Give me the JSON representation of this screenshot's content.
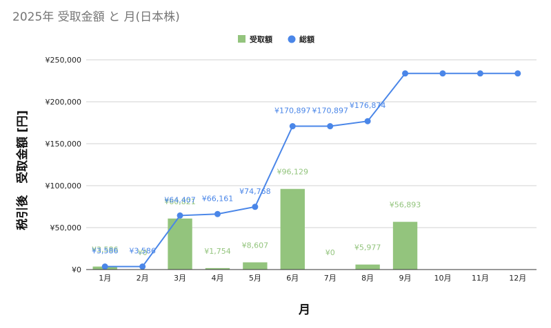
{
  "title": "2025年 受取金額 と 月(日本株)",
  "colors": {
    "bar": "#93c47d",
    "line": "#4a86e8",
    "grid": "#d0d0d0",
    "text": "#222222"
  },
  "chart_data": {
    "type": "bar",
    "title": "2025年 受取金額 と 月(日本株)",
    "xlabel": "月",
    "ylabel": "税引後　受取金額 [円]",
    "categories": [
      "1月",
      "2月",
      "3月",
      "4月",
      "5月",
      "6月",
      "7月",
      "8月",
      "9月",
      "10月",
      "11月",
      "12月"
    ],
    "ylim": [
      0,
      250000
    ],
    "y_ticks": [
      0,
      50000,
      100000,
      150000,
      200000,
      250000
    ],
    "y_tick_labels": [
      "¥0",
      "¥50,000",
      "¥100,000",
      "¥150,000",
      "¥200,000",
      "¥250,000"
    ],
    "grid": true,
    "legend_position": "top",
    "series": [
      {
        "name": "受取額",
        "type": "bar",
        "color": "#93c47d",
        "values": [
          3586,
          0,
          60821,
          1754,
          8607,
          96129,
          0,
          5977,
          56893,
          null,
          null,
          null
        ],
        "labels": [
          "¥3,586",
          "¥0",
          "¥60,821",
          "¥1,754",
          "¥8,607",
          "¥96,129",
          "¥0",
          "¥5,977",
          "¥56,893",
          "",
          "",
          ""
        ]
      },
      {
        "name": "総額",
        "type": "line",
        "color": "#4a86e8",
        "values": [
          3586,
          3586,
          64407,
          66161,
          74768,
          170897,
          170897,
          176874,
          233767,
          233767,
          233767,
          233767
        ],
        "labels": [
          "¥3,586",
          "¥3,586",
          "¥64,407",
          "¥66,161",
          "¥74,768",
          "¥170,897",
          "¥170,897",
          "¥176,874",
          "",
          "",
          "",
          ""
        ]
      }
    ]
  }
}
